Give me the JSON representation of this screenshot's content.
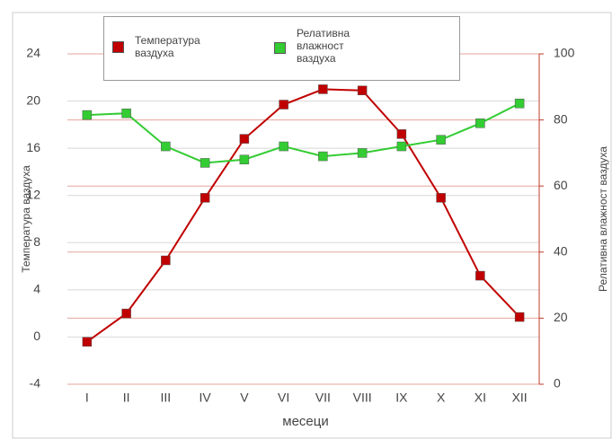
{
  "chart_data": {
    "type": "line",
    "categories": [
      "I",
      "II",
      "III",
      "IV",
      "V",
      "VI",
      "VII",
      "VIII",
      "IX",
      "X",
      "XI",
      "XII"
    ],
    "x_label": "месеци",
    "y_label": "Температура ваздуха",
    "y2_label": "Релативна влажност ваздуха",
    "ylim": [
      -4,
      24
    ],
    "yticks": [
      -4,
      0,
      4,
      8,
      12,
      16,
      20,
      24
    ],
    "y2lim": [
      0,
      100
    ],
    "y2ticks": [
      0,
      20,
      40,
      60,
      80,
      100
    ],
    "grid": true,
    "y2_color": "#c0392b",
    "series": [
      {
        "name": "Температура ваздуха",
        "color": "#c00000",
        "values": [
          -0.4,
          2.0,
          6.5,
          11.8,
          16.8,
          19.7,
          21.0,
          20.9,
          17.2,
          11.8,
          5.2,
          1.7
        ]
      },
      {
        "name": "Релативна влажност ваздуха",
        "color": "#33cc33",
        "axis": "y2",
        "values": [
          81.5,
          82,
          72,
          67,
          68,
          72,
          69,
          70,
          72,
          74,
          79,
          85
        ]
      }
    ]
  }
}
